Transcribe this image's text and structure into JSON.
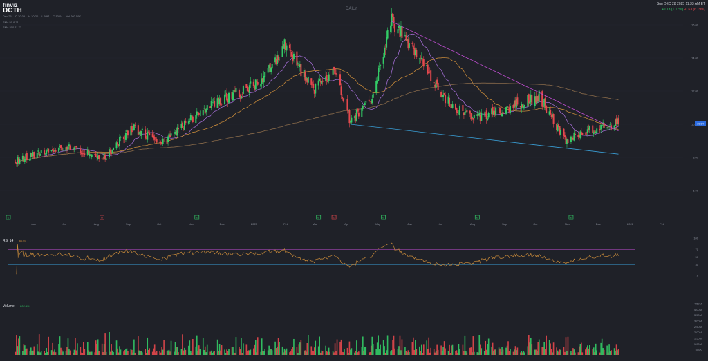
{
  "header": {
    "logo": "finviz",
    "ticker": "DCTH",
    "info": [
      "Dec 26",
      "O 10.05",
      "H 10.20",
      "L 9.97",
      "C 10.04",
      "Vol 202.59K"
    ],
    "ma1": "SMA 50  9.71",
    "ma2": "SMA 200  11.73",
    "timeframe": "DAILY",
    "datetime": "Sun DEC 28 2025 11:33 AM ET",
    "change_pos": "+0.13 (1.17%)",
    "change_neg": "-0.63 (6.19%)"
  },
  "colors": {
    "background": "#1f2128",
    "up": "#33cc66",
    "down": "#e5484d",
    "sma20": "#a06bd0",
    "sma50": "#c88a3a",
    "sma200": "#8a6b4a",
    "trend_upper": "#c44fd6",
    "trend_lower": "#3aa0d8",
    "rsi_line": "#c88a3a"
  },
  "price_panel": {
    "last_label": "10.04",
    "y_ticks": [
      "16.00",
      "14.00",
      "12.00",
      "10.00",
      "8.00",
      "6.00"
    ],
    "x_ticks": [
      "Jun",
      "Jul",
      "Aug",
      "Sep",
      "Oct",
      "Nov",
      "Dec",
      "2025",
      "Feb",
      "Mar",
      "Apr",
      "May",
      "Jun",
      "Jul",
      "Aug",
      "Sep",
      "Oct",
      "Nov",
      "Dec",
      "2026",
      "Feb"
    ],
    "event_markers": [
      {
        "label": "E",
        "color": "#33cc66"
      },
      {
        "label": "D",
        "color": "#e5484d"
      },
      {
        "label": "E",
        "color": "#33cc66"
      },
      {
        "label": "E",
        "color": "#33cc66"
      },
      {
        "label": "D",
        "color": "#e5484d"
      },
      {
        "label": "E",
        "color": "#33cc66"
      },
      {
        "label": "E",
        "color": "#33cc66"
      },
      {
        "label": "E",
        "color": "#33cc66"
      }
    ]
  },
  "rsi_panel": {
    "label": "RSI 14",
    "value": "60.03",
    "y_ticks": [
      "100",
      "70",
      "50",
      "30",
      "0"
    ]
  },
  "volume_panel": {
    "label": "Volume",
    "value": "202.59K",
    "y_ticks": [
      "4.50M",
      "4.00M",
      "3.50M",
      "3.00M",
      "2.50M",
      "2.00M",
      "1.50M",
      "1.00M",
      "500K"
    ]
  },
  "chart_data": {
    "type": "candlestick",
    "title": "DCTH",
    "timeframe": "DAILY",
    "ylim": [
      5,
      17
    ],
    "x_range": [
      "2024-05",
      "2026-02"
    ],
    "price_waypoints": [
      {
        "date": "2024-05-20",
        "close": 7.8
      },
      {
        "date": "2024-06-10",
        "close": 8.2
      },
      {
        "date": "2024-07-10",
        "close": 8.6
      },
      {
        "date": "2024-08-15",
        "close": 8.0
      },
      {
        "date": "2024-09-10",
        "close": 9.8
      },
      {
        "date": "2024-10-10",
        "close": 8.9
      },
      {
        "date": "2024-11-10",
        "close": 10.5
      },
      {
        "date": "2024-12-10",
        "close": 11.6
      },
      {
        "date": "2025-01-10",
        "close": 12.4
      },
      {
        "date": "2025-02-05",
        "close": 14.8
      },
      {
        "date": "2025-03-05",
        "close": 12.0
      },
      {
        "date": "2025-03-25",
        "close": 13.2
      },
      {
        "date": "2025-04-10",
        "close": 10.2
      },
      {
        "date": "2025-04-30",
        "close": 11.5
      },
      {
        "date": "2025-05-20",
        "close": 16.2
      },
      {
        "date": "2025-06-15",
        "close": 14.2
      },
      {
        "date": "2025-07-10",
        "close": 11.5
      },
      {
        "date": "2025-08-10",
        "close": 10.3
      },
      {
        "date": "2025-09-10",
        "close": 11.0
      },
      {
        "date": "2025-10-10",
        "close": 11.7
      },
      {
        "date": "2025-11-05",
        "close": 9.0
      },
      {
        "date": "2025-11-25",
        "close": 9.6
      },
      {
        "date": "2025-12-26",
        "close": 10.04
      }
    ],
    "trendlines": {
      "upper": [
        {
          "date": "2025-05-20",
          "value": 16.2
        },
        {
          "date": "2025-12-26",
          "value": 9.6
        }
      ],
      "lower": [
        {
          "date": "2025-04-10",
          "value": 10.0
        },
        {
          "date": "2025-12-26",
          "value": 8.2
        }
      ]
    },
    "sma50_last": 9.71,
    "sma200_last": 11.73,
    "rsi_last": 60.03,
    "volume_last": 202590,
    "volume_peak": 4500000
  }
}
